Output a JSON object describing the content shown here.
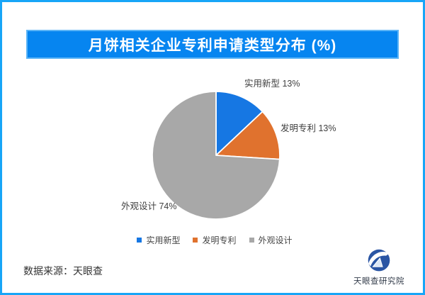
{
  "header": {
    "title": "月饼相关企业专利申请类型分布 (%)"
  },
  "chart_data": {
    "type": "pie",
    "title": "月饼相关企业专利申请类型分布 (%)",
    "unit": "%",
    "categories": [
      "实用新型",
      "发明专利",
      "外观设计"
    ],
    "values": [
      13,
      13,
      74
    ],
    "colors": [
      "#1677e3",
      "#e0722e",
      "#a8a8a8"
    ],
    "slice_labels": [
      "实用新型 13%",
      "发明专利 13%",
      "外观设计 74%"
    ],
    "start_angle_deg": 0,
    "direction": "clockwise",
    "legend_position": "bottom",
    "slice_border_color": "#ffffff"
  },
  "footer": {
    "source": "数据来源：天眼查",
    "logo_text": "天眼查研究院"
  },
  "colors": {
    "page_border": "#18a5f7",
    "banner_bg": "#0685f0",
    "banner_border": "#5cb5f7",
    "banner_text": "#ffffff",
    "label_text": "#3f3f3f",
    "source_text": "#333333",
    "logo_blue": "#2a55a4",
    "logo_text": "#323b49"
  }
}
